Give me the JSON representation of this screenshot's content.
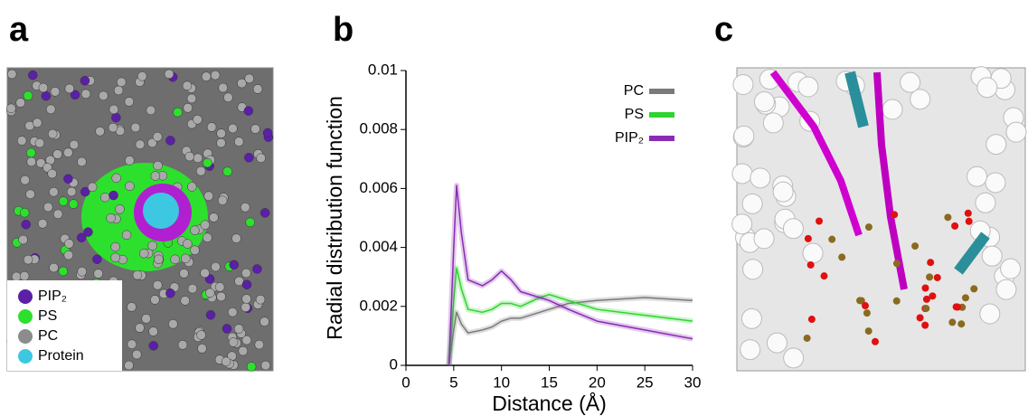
{
  "panel_labels": [
    "a",
    "b",
    "c"
  ],
  "panel_a_legend": [
    {
      "label": "PIP₂",
      "color": "#5b1fa8"
    },
    {
      "label": "PS",
      "color": "#2ee02e"
    },
    {
      "label": "PC",
      "color": "#8c8c8c"
    },
    {
      "label": "Protein",
      "color": "#3cc8e0"
    }
  ],
  "chart_data": {
    "type": "line",
    "xlabel": "Distance (Å)",
    "ylabel": "Radial distribution function",
    "xlim": [
      0,
      30
    ],
    "xticks": [
      0,
      5,
      10,
      15,
      20,
      25,
      30
    ],
    "ylim": [
      0,
      0.01
    ],
    "yticks": [
      0,
      0.002,
      0.004,
      0.006,
      0.008,
      0.01
    ],
    "x": [
      4.5,
      5,
      5.3,
      5.8,
      6.5,
      8,
      9,
      10,
      11,
      12,
      14,
      15,
      17,
      20,
      25,
      30
    ],
    "series": [
      {
        "name": "PC",
        "color": "#7a7a7a",
        "values": [
          0,
          0.0012,
          0.0018,
          0.0014,
          0.0011,
          0.0012,
          0.0013,
          0.0015,
          0.0016,
          0.0016,
          0.0018,
          0.0019,
          0.0021,
          0.0022,
          0.0023,
          0.0022
        ]
      },
      {
        "name": "PS",
        "color": "#2fd42f",
        "values": [
          0,
          0.0022,
          0.0033,
          0.0026,
          0.0019,
          0.0018,
          0.0019,
          0.0021,
          0.0021,
          0.002,
          0.0023,
          0.0024,
          0.0022,
          0.0019,
          0.0017,
          0.0015
        ]
      },
      {
        "name": "PIP₂",
        "color": "#8a2bb5",
        "values": [
          0,
          0.004,
          0.0061,
          0.0045,
          0.0029,
          0.0027,
          0.0029,
          0.0032,
          0.0029,
          0.0025,
          0.0023,
          0.0022,
          0.0019,
          0.0015,
          0.0012,
          0.0009
        ]
      }
    ]
  }
}
